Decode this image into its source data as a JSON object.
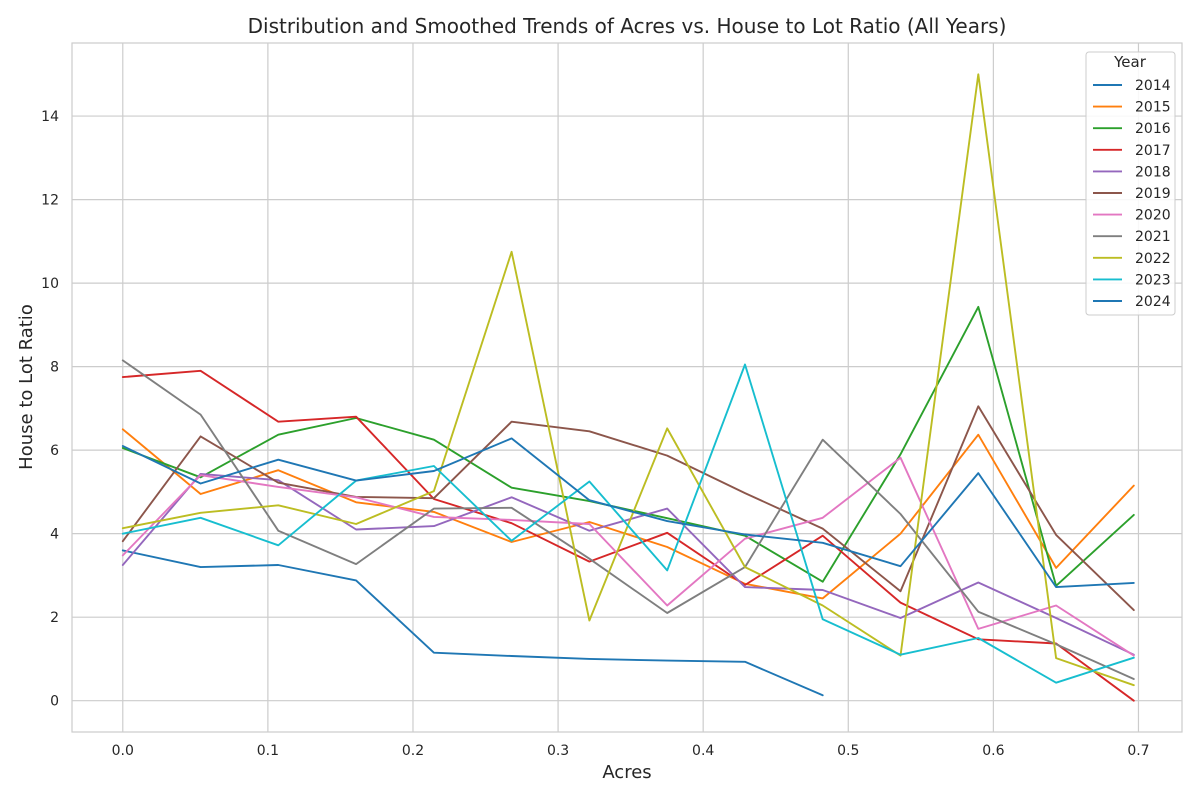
{
  "chart_data": {
    "type": "line",
    "title": "Distribution and Smoothed Trends of Acres vs. House to Lot Ratio (All Years)",
    "xlabel": "Acres",
    "ylabel": "House to Lot Ratio",
    "xlim": [
      -0.035,
      0.73
    ],
    "ylim": [
      -0.75,
      15.75
    ],
    "xticks": [
      0.0,
      0.1,
      0.2,
      0.3,
      0.4,
      0.5,
      0.6,
      0.7
    ],
    "xtick_labels": [
      "0.0",
      "0.1",
      "0.2",
      "0.3",
      "0.4",
      "0.5",
      "0.6",
      "0.7"
    ],
    "yticks": [
      0,
      2,
      4,
      6,
      8,
      10,
      12,
      14
    ],
    "ytick_labels": [
      "0",
      "2",
      "4",
      "6",
      "8",
      "10",
      "12",
      "14"
    ],
    "grid": true,
    "legend_title": "Year",
    "legend_position": "top-right",
    "x": [
      0.0,
      0.0536,
      0.1072,
      0.1608,
      0.2144,
      0.268,
      0.3216,
      0.3752,
      0.4288,
      0.4824,
      0.536,
      0.5896,
      0.6432,
      0.6968
    ],
    "series": [
      {
        "name": "2014",
        "color": "#1f77b4",
        "values": [
          3.6,
          3.2,
          3.25,
          2.88,
          1.15,
          1.07,
          1.0,
          0.96,
          0.93,
          0.13,
          null,
          null,
          null,
          null
        ]
      },
      {
        "name": "2015",
        "color": "#ff7f0e",
        "values": [
          6.5,
          4.95,
          5.52,
          4.75,
          4.52,
          3.8,
          4.28,
          3.68,
          2.8,
          2.45,
          4.0,
          6.37,
          3.18,
          5.15
        ]
      },
      {
        "name": "2016",
        "color": "#2ca02c",
        "values": [
          6.05,
          5.35,
          6.37,
          6.77,
          6.25,
          5.1,
          4.78,
          4.37,
          3.95,
          2.85,
          5.9,
          9.43,
          2.75,
          4.45
        ]
      },
      {
        "name": "2017",
        "color": "#d62728",
        "values": [
          7.75,
          7.9,
          6.68,
          6.8,
          4.83,
          4.25,
          3.33,
          4.02,
          2.77,
          3.95,
          2.35,
          1.47,
          1.37,
          0.0
        ]
      },
      {
        "name": "2018",
        "color": "#9467bd",
        "values": [
          3.25,
          5.43,
          5.28,
          4.1,
          4.18,
          4.87,
          4.07,
          4.6,
          2.72,
          2.65,
          1.98,
          2.83,
          1.98,
          1.1
        ]
      },
      {
        "name": "2019",
        "color": "#8c564b",
        "values": [
          3.82,
          6.33,
          5.22,
          4.88,
          4.85,
          6.68,
          6.45,
          5.87,
          4.97,
          4.12,
          2.62,
          7.05,
          3.97,
          2.17
        ]
      },
      {
        "name": "2020",
        "color": "#e377c2",
        "values": [
          3.48,
          5.4,
          5.12,
          4.87,
          4.4,
          4.33,
          4.23,
          2.28,
          3.88,
          4.38,
          5.82,
          1.72,
          2.28,
          1.08
        ]
      },
      {
        "name": "2021",
        "color": "#7f7f7f",
        "values": [
          8.15,
          6.85,
          4.07,
          3.27,
          4.6,
          4.62,
          3.4,
          2.1,
          3.2,
          6.25,
          4.47,
          2.13,
          1.35,
          0.52
        ]
      },
      {
        "name": "2022",
        "color": "#bcbd22",
        "values": [
          4.13,
          4.5,
          4.68,
          4.23,
          5.02,
          10.75,
          1.92,
          6.52,
          3.2,
          2.28,
          1.08,
          15.0,
          1.02,
          0.37
        ]
      },
      {
        "name": "2023",
        "color": "#17becf",
        "values": [
          4.0,
          4.38,
          3.72,
          5.27,
          5.62,
          3.83,
          5.25,
          3.12,
          8.05,
          1.95,
          1.1,
          1.5,
          0.43,
          1.03
        ]
      },
      {
        "name": "2024",
        "color": "#1f77b4",
        "values": [
          6.1,
          5.2,
          5.77,
          5.27,
          5.5,
          6.28,
          4.8,
          4.3,
          3.98,
          3.78,
          3.22,
          5.45,
          2.72,
          2.82
        ]
      }
    ]
  }
}
